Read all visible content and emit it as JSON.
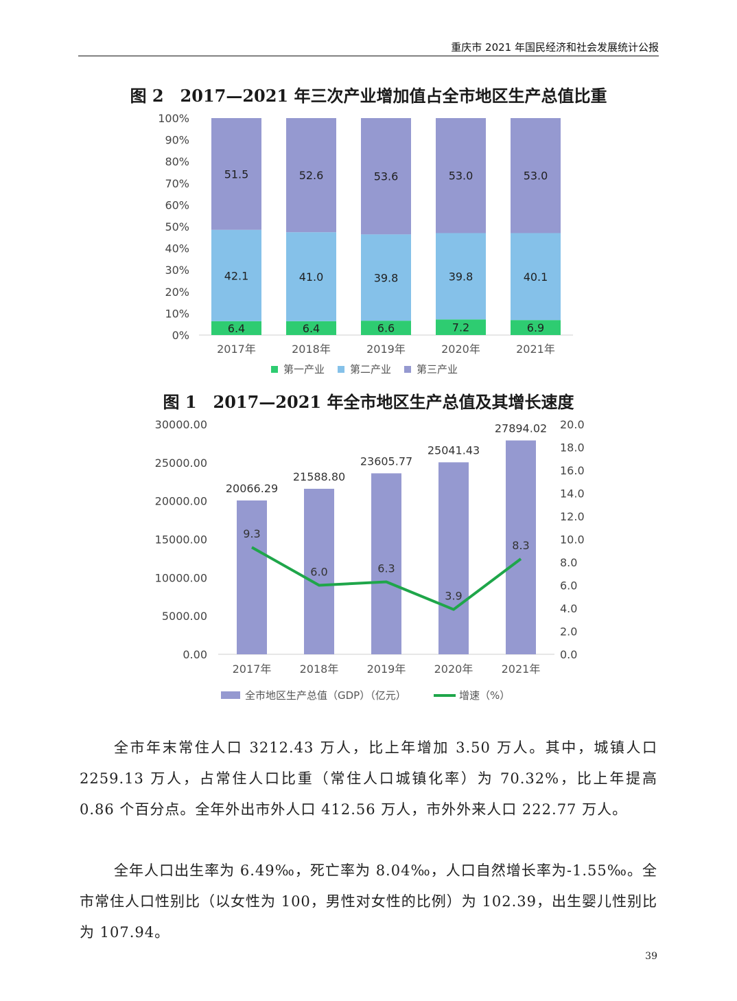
{
  "header": {
    "title": "重庆市 2021 年国民经济和社会发展统计公报"
  },
  "figures": {
    "fig2_title": "图 2　2017—2021 年三次产业增加值占全市地区生产总值比重",
    "fig1_title": "图 1　2017—2021 年全市地区生产总值及其增长速度"
  },
  "chart_data": [
    {
      "type": "bar",
      "stacked": true,
      "title": "图 2　2017—2021 年三次产业增加值占全市地区生产总值比重",
      "categories": [
        "2017年",
        "2018年",
        "2019年",
        "2020年",
        "2021年"
      ],
      "yticks": [
        "0%",
        "10%",
        "20%",
        "30%",
        "40%",
        "50%",
        "60%",
        "70%",
        "80%",
        "90%",
        "100%"
      ],
      "ylim": [
        0,
        100
      ],
      "legend_position": "bottom",
      "series": [
        {
          "name": "第一产业",
          "values": [
            6.4,
            6.4,
            6.6,
            7.2,
            6.9
          ],
          "labels": [
            "6.4",
            "6.4",
            "6.6",
            "7.2",
            "6.9"
          ],
          "color": "#2ecc71"
        },
        {
          "name": "第二产业",
          "values": [
            42.1,
            41.0,
            39.8,
            39.8,
            40.1
          ],
          "labels": [
            "42.1",
            "41.0",
            "39.8",
            "39.8",
            "40.1"
          ],
          "color": "#85c1e9"
        },
        {
          "name": "第三产业",
          "values": [
            51.5,
            52.6,
            53.6,
            53.0,
            53.0
          ],
          "labels": [
            "51.5",
            "52.6",
            "53.6",
            "53.0",
            "53.0"
          ],
          "color": "#9599d0"
        }
      ]
    },
    {
      "type": "bar",
      "title": "图 1　2017—2021 年全市地区生产总值及其增长速度",
      "categories": [
        "2017年",
        "2018年",
        "2019年",
        "2020年",
        "2021年"
      ],
      "ylim": [
        0,
        30000
      ],
      "y2lim": [
        0,
        20
      ],
      "yticks": [
        "0.00",
        "5000.00",
        "10000.00",
        "15000.00",
        "20000.00",
        "25000.00",
        "30000.00"
      ],
      "y2ticks": [
        "0.0",
        "2.0",
        "4.0",
        "6.0",
        "8.0",
        "10.0",
        "12.0",
        "14.0",
        "16.0",
        "18.0",
        "20.0"
      ],
      "legend_position": "bottom",
      "series": [
        {
          "name": "全市地区生产总值（GDP）（亿元）",
          "type": "bar",
          "axis": "left",
          "color": "#9599d0",
          "values": [
            20066.29,
            21588.8,
            23605.77,
            25041.43,
            27894.02
          ],
          "labels": [
            "20066.29",
            "21588.80",
            "23605.77",
            "25041.43",
            "27894.02"
          ]
        },
        {
          "name": "增速（%）",
          "type": "line",
          "axis": "right",
          "color": "#1fa64a",
          "values": [
            9.3,
            6.0,
            6.3,
            3.9,
            8.3
          ],
          "labels": [
            "9.3",
            "6.0",
            "6.3",
            "3.9",
            "8.3"
          ]
        }
      ]
    }
  ],
  "paragraphs": [
    "全市年末常住人口 3212.43 万人，比上年增加 3.50 万人。其中，城镇人口 2259.13 万人，占常住人口比重（常住人口城镇化率）为 70.32%，比上年提高 0.86 个百分点。全年外出市外人口 412.56 万人，市外外来人口 222.77 万人。",
    "全年人口出生率为 6.49‰，死亡率为 8.04‰，人口自然增长率为-1.55‰。全市常住人口性别比（以女性为 100，男性对女性的比例）为 102.39，出生婴儿性别比为 107.94。"
  ],
  "page_number": "39"
}
